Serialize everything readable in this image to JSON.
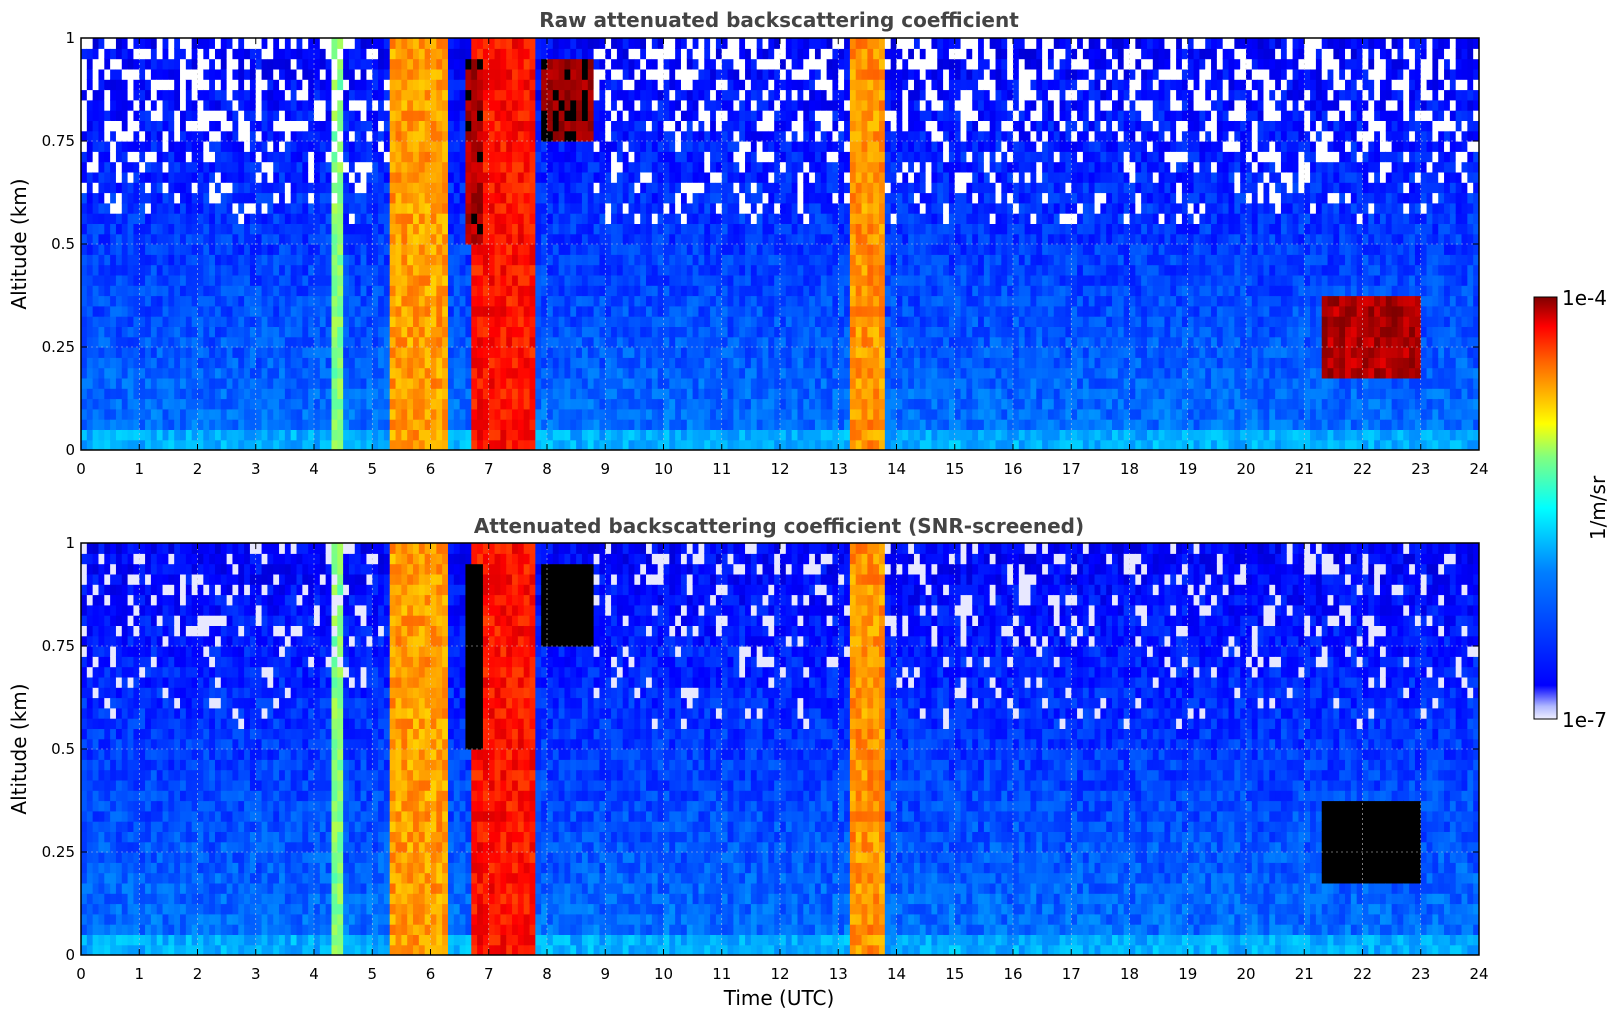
{
  "chart_data": [
    {
      "type": "heatmap",
      "title": "Raw attenuated backscattering coefficient",
      "xlabel": "",
      "ylabel": "Altitude (km)",
      "xlim": [
        0,
        24
      ],
      "ylim": [
        0,
        1
      ],
      "xticks": [
        "0",
        "1",
        "2",
        "3",
        "4",
        "5",
        "6",
        "7",
        "8",
        "9",
        "10",
        "11",
        "12",
        "13",
        "14",
        "15",
        "16",
        "17",
        "18",
        "19",
        "20",
        "21",
        "22",
        "23",
        "24"
      ],
      "yticks": [
        "0",
        "0.25",
        "0.5",
        "0.75",
        "1"
      ],
      "grid": true,
      "screened": false,
      "features": [
        {
          "x": [
            4.3,
            4.5
          ],
          "y": [
            0,
            1
          ],
          "level": 0.5
        },
        {
          "x": [
            5.3,
            6.3
          ],
          "y": [
            0,
            1
          ],
          "level": 0.72
        },
        {
          "x": [
            6.7,
            7.8
          ],
          "y": [
            0,
            1
          ],
          "level": 0.86
        },
        {
          "x": [
            6.6,
            6.9
          ],
          "y": [
            0.5,
            0.95
          ],
          "level": 0.96
        },
        {
          "x": [
            7.9,
            8.8
          ],
          "y": [
            0.75,
            0.95
          ],
          "level": 0.98
        },
        {
          "x": [
            13.2,
            13.8
          ],
          "y": [
            0,
            1
          ],
          "level": 0.73
        },
        {
          "x": [
            21.3,
            23.0
          ],
          "y": [
            0.17,
            0.38
          ],
          "level": 0.95
        }
      ]
    },
    {
      "type": "heatmap",
      "title": "Attenuated backscattering coefficient (SNR-screened)",
      "xlabel": "Time (UTC)",
      "ylabel": "Altitude (km)",
      "xlim": [
        0,
        24
      ],
      "ylim": [
        0,
        1
      ],
      "xticks": [
        "0",
        "1",
        "2",
        "3",
        "4",
        "5",
        "6",
        "7",
        "8",
        "9",
        "10",
        "11",
        "12",
        "13",
        "14",
        "15",
        "16",
        "17",
        "18",
        "19",
        "20",
        "21",
        "22",
        "23",
        "24"
      ],
      "yticks": [
        "0",
        "0.25",
        "0.5",
        "0.75",
        "1"
      ],
      "grid": true,
      "screened": true,
      "features": [
        {
          "x": [
            4.3,
            4.5
          ],
          "y": [
            0,
            1
          ],
          "level": 0.5
        },
        {
          "x": [
            5.3,
            6.3
          ],
          "y": [
            0,
            1
          ],
          "level": 0.72
        },
        {
          "x": [
            6.7,
            7.8
          ],
          "y": [
            0,
            1
          ],
          "level": 0.86
        },
        {
          "x": [
            6.6,
            6.9
          ],
          "y": [
            0.5,
            0.95
          ],
          "level": 1.05
        },
        {
          "x": [
            7.9,
            8.8
          ],
          "y": [
            0.75,
            0.95
          ],
          "level": 1.05
        },
        {
          "x": [
            13.2,
            13.8
          ],
          "y": [
            0,
            1
          ],
          "level": 0.73
        },
        {
          "x": [
            21.3,
            23.0
          ],
          "y": [
            0.17,
            0.38
          ],
          "level": 1.05
        }
      ]
    }
  ],
  "colorbar": {
    "label": "1/m/sr",
    "max_label": "1e-4",
    "min_label": "1e-7",
    "scale": "log",
    "colormap": "jet",
    "over_color": "#000000",
    "under_color": "#eeeeff"
  }
}
